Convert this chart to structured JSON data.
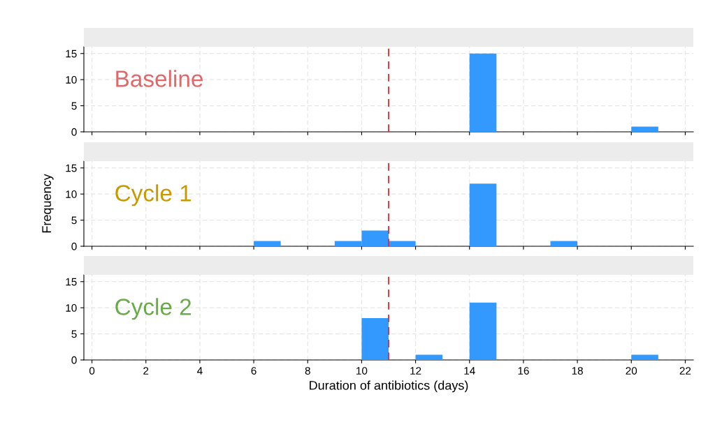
{
  "chart_data": [
    {
      "type": "histogram",
      "bins": [
        14,
        15,
        16,
        17,
        18,
        19,
        20,
        21
      ],
      "values": [
        15,
        0,
        0,
        0,
        0,
        0,
        1
      ],
      "color": "#3399ff",
      "xlim": [
        -0.3,
        22.3
      ],
      "xticks": [
        0,
        2,
        4,
        6,
        8,
        10,
        12,
        14,
        16,
        18,
        20,
        22
      ],
      "ylim": [
        0,
        16.3
      ],
      "yticks": [
        0,
        5,
        10,
        15
      ],
      "tick_labels": "y",
      "grid": true,
      "annotations": [
        "Baseline"
      ],
      "ref_lines": [
        {
          "axis": "x",
          "value": 11,
          "color": "#e8262b",
          "line_style": "dashed"
        }
      ]
    },
    {
      "type": "histogram",
      "bins": [
        6,
        7,
        8,
        9,
        10,
        11,
        12,
        13,
        14,
        15,
        16,
        17,
        18
      ],
      "values": [
        1,
        0,
        0,
        1,
        3,
        1,
        0,
        0,
        12,
        0,
        0,
        1
      ],
      "color": "#3399ff",
      "xlim": [
        -0.3,
        22.3
      ],
      "xticks": [
        0,
        2,
        4,
        6,
        8,
        10,
        12,
        14,
        16,
        18,
        20,
        22
      ],
      "ylim": [
        0,
        16.3
      ],
      "yticks": [
        0,
        5,
        10,
        15
      ],
      "tick_labels": "y",
      "grid": true,
      "ylabel": "Frequency",
      "annotations": [
        "Cycle 1"
      ],
      "ref_lines": [
        {
          "axis": "x",
          "value": 11,
          "color": "#e8262b",
          "line_style": "dashed"
        }
      ]
    },
    {
      "type": "histogram",
      "bins": [
        10,
        11,
        12,
        13,
        14,
        15,
        16,
        17,
        18,
        19,
        20,
        21
      ],
      "values": [
        8,
        0,
        1,
        0,
        11,
        0,
        0,
        0,
        0,
        0,
        1
      ],
      "color": "#3399ff",
      "xlim": [
        -0.3,
        22.3
      ],
      "xticks": [
        0,
        2,
        4,
        6,
        8,
        10,
        12,
        14,
        16,
        18,
        20,
        22
      ],
      "ylim": [
        0,
        16.3
      ],
      "yticks": [
        0,
        5,
        10,
        15
      ],
      "grid": true,
      "xlabel": "Duration of antibiotics (days)",
      "annotations": [
        "Cycle 2"
      ],
      "ref_lines": [
        {
          "axis": "x",
          "value": 11,
          "color": "#e8262b",
          "line_style": "dashed"
        }
      ]
    }
  ]
}
